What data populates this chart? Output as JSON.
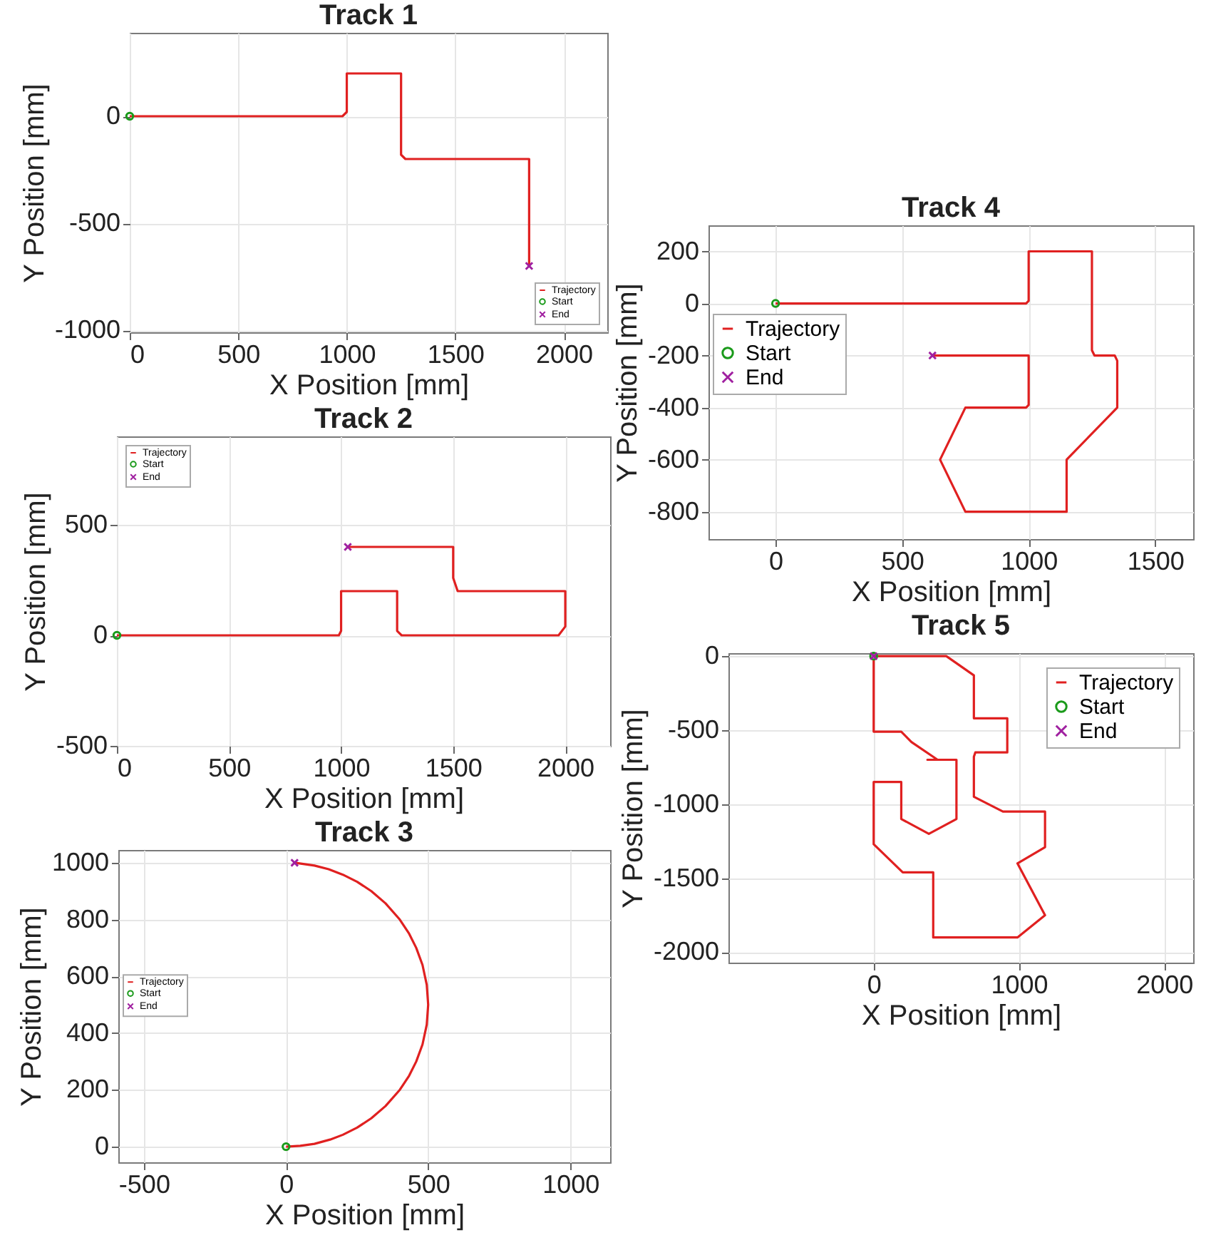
{
  "chart_data": [
    {
      "type": "line",
      "title": "Track 1",
      "xlabel": "X Position [mm]",
      "ylabel": "Y Position [mm]",
      "xlim": [
        0,
        2200
      ],
      "ylim": [
        -1010,
        390
      ],
      "xticks": [
        0,
        500,
        1000,
        1500,
        2000
      ],
      "yticks": [
        -1000,
        -500,
        0
      ],
      "grid": true,
      "legend": "bottom right",
      "series": [
        {
          "name": "Trajectory",
          "type": "line",
          "color": "#e02020",
          "x": [
            0,
            980,
            1000,
            1000,
            1250,
            1250,
            1270,
            1840,
            1840
          ],
          "values": [
            0,
            0,
            20,
            200,
            200,
            -180,
            -200,
            -200,
            -700
          ]
        },
        {
          "name": "Start",
          "type": "scatter",
          "marker": "circle",
          "color": "#1a9a1a",
          "x": [
            0
          ],
          "values": [
            0
          ]
        },
        {
          "name": "End",
          "type": "scatter",
          "marker": "cross",
          "color": "#a020a0",
          "x": [
            1840
          ],
          "values": [
            -700
          ]
        }
      ]
    },
    {
      "type": "line",
      "title": "Track 2",
      "xlabel": "X Position [mm]",
      "ylabel": "Y Position [mm]",
      "xlim": [
        0,
        2200
      ],
      "ylim": [
        -500,
        900
      ],
      "xticks": [
        0,
        500,
        1000,
        1500,
        2000
      ],
      "yticks": [
        -500,
        0,
        500
      ],
      "grid": true,
      "legend": "top left",
      "series": [
        {
          "name": "Trajectory",
          "type": "line",
          "color": "#e02020",
          "x": [
            0,
            990,
            1000,
            1000,
            1250,
            1250,
            1270,
            1970,
            2000,
            2000,
            1520,
            1500,
            1500,
            1030
          ],
          "values": [
            0,
            0,
            20,
            200,
            200,
            20,
            0,
            0,
            40,
            200,
            200,
            260,
            400,
            400
          ]
        },
        {
          "name": "Start",
          "type": "scatter",
          "marker": "circle",
          "color": "#1a9a1a",
          "x": [
            0
          ],
          "values": [
            0
          ]
        },
        {
          "name": "End",
          "type": "scatter",
          "marker": "cross",
          "color": "#a020a0",
          "x": [
            1030
          ],
          "values": [
            400
          ]
        }
      ]
    },
    {
      "type": "line",
      "title": "Track 3",
      "xlabel": "X Position [mm]",
      "ylabel": "Y Position [mm]",
      "xlim": [
        -590,
        1140
      ],
      "ylim": [
        -55,
        1045
      ],
      "xticks": [
        -500,
        0,
        500,
        1000
      ],
      "yticks": [
        0,
        200,
        400,
        600,
        800,
        1000
      ],
      "grid": true,
      "legend": "left",
      "series": [
        {
          "name": "Trajectory",
          "type": "line",
          "color": "#e02020",
          "x": [
            0,
            50,
            100,
            155,
            200,
            250,
            300,
            350,
            400,
            433,
            458,
            480,
            495,
            500,
            495,
            480,
            458,
            433,
            400,
            350,
            300,
            250,
            200,
            150,
            100,
            30
          ],
          "values": [
            0,
            3,
            10,
            25,
            42,
            67,
            100,
            143,
            200,
            250,
            300,
            360,
            430,
            500,
            570,
            640,
            700,
            750,
            800,
            857,
            900,
            933,
            958,
            977,
            990,
            1000
          ]
        },
        {
          "name": "Start",
          "type": "scatter",
          "marker": "circle",
          "color": "#1a9a1a",
          "x": [
            0
          ],
          "values": [
            0
          ]
        },
        {
          "name": "End",
          "type": "scatter",
          "marker": "cross",
          "color": "#a020a0",
          "x": [
            30
          ],
          "values": [
            1000
          ]
        }
      ]
    },
    {
      "type": "line",
      "title": "Track 4",
      "xlabel": "X Position [mm]",
      "ylabel": "Y Position [mm]",
      "xlim": [
        -265,
        1650
      ],
      "ylim": [
        -905,
        300
      ],
      "xticks": [
        0,
        500,
        1000,
        1500
      ],
      "yticks": [
        -800,
        -600,
        -400,
        -200,
        0,
        200
      ],
      "grid": true,
      "legend": "left",
      "series": [
        {
          "name": "Trajectory",
          "type": "line",
          "color": "#e02020",
          "x": [
            0,
            990,
            1000,
            1000,
            1250,
            1250,
            1260,
            1340,
            1350,
            1350,
            1150,
            1150,
            750,
            650,
            750,
            990,
            1000,
            1000,
            620
          ],
          "values": [
            0,
            0,
            10,
            200,
            200,
            -180,
            -200,
            -200,
            -220,
            -400,
            -600,
            -800,
            -800,
            -600,
            -400,
            -400,
            -390,
            -200,
            -200
          ]
        },
        {
          "name": "Start",
          "type": "scatter",
          "marker": "circle",
          "color": "#1a9a1a",
          "x": [
            0
          ],
          "values": [
            0
          ]
        },
        {
          "name": "End",
          "type": "scatter",
          "marker": "cross",
          "color": "#a020a0",
          "x": [
            620
          ],
          "values": [
            -200
          ]
        }
      ]
    },
    {
      "type": "line",
      "title": "Track 5",
      "xlabel": "X Position [mm]",
      "ylabel": "Y Position [mm]",
      "xlim": [
        -1000,
        2200
      ],
      "ylim": [
        -2070,
        20
      ],
      "xticks": [
        0,
        1000,
        2000
      ],
      "yticks": [
        -2000,
        -1500,
        -1000,
        -500,
        0
      ],
      "grid": true,
      "legend": "top right",
      "series": [
        {
          "name": "Trajectory",
          "type": "line",
          "color": "#e02020",
          "x": [
            0,
            500,
            690,
            690,
            920,
            920,
            700,
            690,
            690,
            890,
            1180,
            1180,
            990,
            1180,
            990,
            410,
            410,
            200,
            0,
            0,
            190,
            190,
            380,
            570,
            570,
            370,
            440,
            260,
            190,
            0,
            0
          ],
          "values": [
            0,
            0,
            -130,
            -420,
            -420,
            -650,
            -650,
            -680,
            -950,
            -1050,
            -1050,
            -1290,
            -1400,
            -1750,
            -1900,
            -1900,
            -1460,
            -1460,
            -1270,
            -850,
            -850,
            -1100,
            -1200,
            -1100,
            -700,
            -700,
            -700,
            -580,
            -510,
            -510,
            -20
          ]
        },
        {
          "name": "Start",
          "type": "scatter",
          "marker": "circle",
          "color": "#1a9a1a",
          "x": [
            0
          ],
          "values": [
            0
          ]
        },
        {
          "name": "End",
          "type": "scatter",
          "marker": "cross",
          "color": "#a020a0",
          "x": [
            0
          ],
          "values": [
            0
          ]
        }
      ]
    }
  ]
}
